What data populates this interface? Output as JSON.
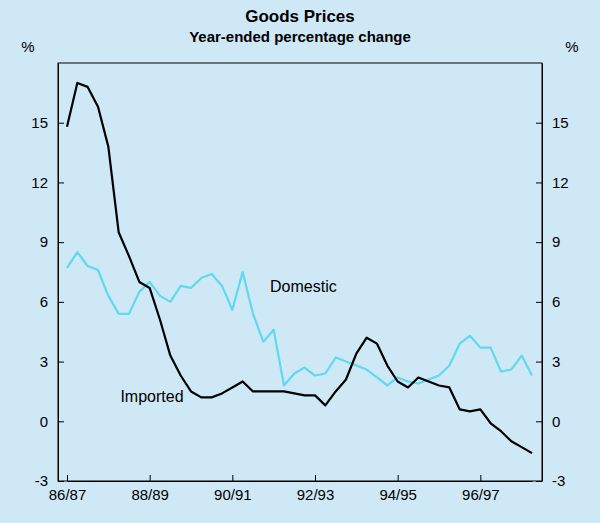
{
  "chart_data": {
    "type": "line",
    "title": "Goods Prices",
    "subtitle": "Year-ended percentage change",
    "ylabel": "%",
    "categories": [
      "86/87",
      null,
      null,
      null,
      null,
      null,
      null,
      null,
      "88/89",
      null,
      null,
      null,
      null,
      null,
      null,
      null,
      "90/91",
      null,
      null,
      null,
      null,
      null,
      null,
      null,
      "92/93",
      null,
      null,
      null,
      null,
      null,
      null,
      null,
      "94/95",
      null,
      null,
      null,
      null,
      null,
      null,
      null,
      "96/97",
      null,
      null,
      null,
      null,
      null
    ],
    "series": [
      {
        "name": "Domestic",
        "color": "#5fd8f0",
        "values": [
          7.7,
          8.5,
          7.8,
          7.6,
          6.3,
          5.4,
          5.4,
          6.5,
          7.0,
          6.3,
          6.0,
          6.8,
          6.7,
          7.2,
          7.4,
          6.8,
          5.6,
          7.5,
          5.4,
          4.0,
          4.6,
          1.8,
          2.4,
          2.7,
          2.3,
          2.4,
          3.2,
          3.0,
          2.8,
          2.6,
          2.2,
          1.8,
          2.2,
          2.0,
          1.9,
          2.1,
          2.3,
          2.8,
          3.9,
          4.3,
          3.7,
          3.7,
          2.5,
          2.6,
          3.3,
          2.3
        ]
      },
      {
        "name": "Imported",
        "color": "#000000",
        "values": [
          14.8,
          17.0,
          16.8,
          15.8,
          13.8,
          9.5,
          8.3,
          7.0,
          6.7,
          5.1,
          3.3,
          2.3,
          1.5,
          1.2,
          1.2,
          1.4,
          1.7,
          2.0,
          1.5,
          1.5,
          1.5,
          1.5,
          1.4,
          1.3,
          1.3,
          0.8,
          1.5,
          2.1,
          3.4,
          4.2,
          3.9,
          2.8,
          2.0,
          1.7,
          2.2,
          2.0,
          1.8,
          1.7,
          0.6,
          0.5,
          0.6,
          -0.1,
          -0.5,
          -1.0,
          -1.3,
          -1.6
        ]
      }
    ],
    "ylim": [
      -3,
      18
    ],
    "yticks": [
      -3,
      0,
      3,
      6,
      9,
      12,
      15
    ],
    "grid": false
  }
}
